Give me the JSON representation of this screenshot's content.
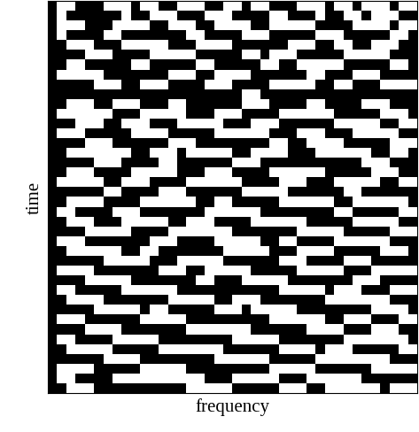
{
  "chart_data": {
    "type": "heatmap",
    "x_label": "frequency",
    "y_label": "time",
    "tick_labels": false,
    "colors": [
      "#000000",
      "#ffffff"
    ],
    "cells": [
      [
        0,
        1,
        1,
        0,
        0,
        0,
        1,
        1,
        1,
        0,
        1,
        1,
        0,
        0,
        1,
        1,
        1,
        0,
        0,
        1,
        1,
        0,
        1,
        1,
        0,
        0,
        0,
        1,
        1,
        1,
        0,
        1,
        1,
        0,
        1,
        1,
        1,
        0,
        1,
        1
      ],
      [
        0,
        1,
        0,
        0,
        0,
        0,
        0,
        0,
        1,
        0,
        0,
        1,
        1,
        1,
        0,
        0,
        0,
        1,
        1,
        1,
        0,
        0,
        0,
        0,
        1,
        1,
        0,
        0,
        0,
        1,
        0,
        0,
        1,
        1,
        0,
        1,
        1,
        1,
        0,
        0
      ],
      [
        0,
        1,
        1,
        1,
        0,
        0,
        0,
        1,
        1,
        1,
        1,
        0,
        0,
        1,
        1,
        1,
        0,
        0,
        1,
        1,
        1,
        1,
        0,
        0,
        1,
        1,
        1,
        1,
        1,
        0,
        0,
        0,
        0,
        1,
        1,
        1,
        1,
        0,
        1,
        1
      ],
      [
        0,
        1,
        0,
        0,
        0,
        0,
        1,
        1,
        0,
        0,
        0,
        0,
        0,
        0,
        0,
        1,
        1,
        0,
        0,
        0,
        0,
        1,
        1,
        1,
        0,
        0,
        0,
        0,
        0,
        1,
        1,
        1,
        0,
        0,
        0,
        0,
        0,
        1,
        1,
        0
      ],
      [
        0,
        0,
        1,
        1,
        1,
        0,
        0,
        0,
        1,
        1,
        1,
        1,
        1,
        0,
        0,
        0,
        1,
        1,
        1,
        1,
        0,
        0,
        0,
        0,
        0,
        0,
        1,
        1,
        1,
        0,
        0,
        1,
        1,
        0,
        0,
        1,
        1,
        1,
        0,
        0
      ],
      [
        0,
        0,
        0,
        0,
        1,
        1,
        1,
        0,
        0,
        0,
        0,
        1,
        1,
        1,
        1,
        1,
        0,
        0,
        0,
        0,
        0,
        1,
        1,
        0,
        1,
        1,
        1,
        0,
        0,
        0,
        0,
        0,
        1,
        1,
        1,
        1,
        1,
        0,
        0,
        0
      ],
      [
        0,
        0,
        1,
        1,
        0,
        0,
        0,
        0,
        0,
        1,
        1,
        0,
        0,
        0,
        0,
        0,
        1,
        1,
        0,
        0,
        0,
        0,
        0,
        1,
        1,
        0,
        0,
        1,
        1,
        1,
        1,
        1,
        0,
        0,
        0,
        0,
        0,
        1,
        1,
        0
      ],
      [
        0,
        1,
        1,
        1,
        1,
        1,
        0,
        0,
        0,
        0,
        0,
        0,
        0,
        1,
        1,
        1,
        0,
        0,
        1,
        1,
        1,
        1,
        0,
        0,
        0,
        0,
        0,
        0,
        1,
        1,
        0,
        0,
        0,
        1,
        1,
        1,
        0,
        0,
        0,
        0
      ],
      [
        0,
        0,
        0,
        0,
        0,
        1,
        1,
        1,
        0,
        0,
        1,
        1,
        1,
        0,
        0,
        0,
        0,
        1,
        1,
        1,
        0,
        0,
        0,
        0,
        1,
        1,
        1,
        1,
        1,
        0,
        0,
        1,
        1,
        0,
        0,
        0,
        1,
        1,
        1,
        1
      ],
      [
        0,
        0,
        0,
        0,
        0,
        0,
        0,
        0,
        0,
        0,
        0,
        0,
        0,
        0,
        0,
        0,
        0,
        0,
        0,
        0,
        0,
        1,
        1,
        0,
        0,
        0,
        0,
        0,
        0,
        0,
        0,
        0,
        0,
        0,
        0,
        0,
        0,
        0,
        0,
        0
      ],
      [
        0,
        0,
        1,
        1,
        1,
        0,
        0,
        1,
        1,
        1,
        0,
        0,
        0,
        1,
        1,
        0,
        0,
        0,
        0,
        0,
        0,
        1,
        1,
        1,
        0,
        0,
        0,
        0,
        1,
        1,
        0,
        0,
        0,
        0,
        1,
        1,
        1,
        0,
        0,
        0
      ],
      [
        0,
        1,
        1,
        1,
        1,
        1,
        1,
        0,
        0,
        0,
        1,
        1,
        1,
        1,
        1,
        0,
        0,
        0,
        1,
        1,
        1,
        0,
        0,
        0,
        0,
        1,
        1,
        1,
        1,
        1,
        1,
        0,
        0,
        0,
        0,
        0,
        1,
        1,
        1,
        0
      ],
      [
        0,
        0,
        0,
        1,
        1,
        1,
        0,
        0,
        1,
        1,
        1,
        0,
        0,
        0,
        1,
        1,
        1,
        1,
        1,
        0,
        0,
        0,
        1,
        1,
        1,
        0,
        0,
        0,
        0,
        0,
        0,
        1,
        1,
        1,
        1,
        1,
        0,
        0,
        1,
        1
      ],
      [
        0,
        1,
        1,
        1,
        0,
        0,
        0,
        0,
        0,
        1,
        1,
        1,
        1,
        0,
        0,
        0,
        0,
        0,
        1,
        1,
        1,
        1,
        1,
        1,
        0,
        0,
        0,
        1,
        1,
        1,
        0,
        0,
        0,
        1,
        1,
        1,
        1,
        1,
        0,
        0
      ],
      [
        0,
        0,
        0,
        0,
        1,
        1,
        1,
        0,
        0,
        0,
        0,
        0,
        0,
        1,
        1,
        1,
        0,
        0,
        0,
        0,
        0,
        0,
        0,
        0,
        1,
        1,
        0,
        0,
        1,
        1,
        1,
        1,
        0,
        0,
        0,
        0,
        0,
        1,
        1,
        1
      ],
      [
        0,
        0,
        1,
        1,
        1,
        1,
        1,
        1,
        1,
        0,
        0,
        1,
        1,
        1,
        0,
        1,
        1,
        1,
        1,
        1,
        0,
        0,
        1,
        1,
        1,
        1,
        0,
        0,
        0,
        1,
        1,
        1,
        1,
        1,
        1,
        0,
        0,
        1,
        1,
        0
      ],
      [
        0,
        0,
        0,
        0,
        0,
        1,
        1,
        1,
        0,
        0,
        0,
        0,
        1,
        1,
        0,
        0,
        0,
        0,
        0,
        0,
        1,
        1,
        1,
        0,
        0,
        0,
        0,
        0,
        0,
        0,
        0,
        0,
        0,
        0,
        1,
        1,
        1,
        0,
        0,
        0
      ],
      [
        0,
        0,
        1,
        1,
        1,
        0,
        0,
        0,
        0,
        1,
        1,
        1,
        1,
        1,
        0,
        0,
        0,
        1,
        1,
        1,
        0,
        0,
        0,
        0,
        1,
        1,
        1,
        1,
        1,
        1,
        0,
        0,
        0,
        0,
        0,
        1,
        1,
        1,
        0,
        0
      ],
      [
        0,
        1,
        1,
        1,
        1,
        1,
        0,
        0,
        1,
        1,
        1,
        0,
        0,
        0,
        0,
        1,
        1,
        1,
        1,
        1,
        1,
        0,
        0,
        0,
        0,
        1,
        1,
        1,
        0,
        0,
        0,
        1,
        1,
        1,
        1,
        1,
        0,
        0,
        1,
        1
      ],
      [
        0,
        0,
        0,
        0,
        0,
        0,
        1,
        1,
        0,
        0,
        0,
        0,
        1,
        1,
        1,
        0,
        0,
        0,
        0,
        0,
        0,
        1,
        1,
        1,
        1,
        1,
        0,
        0,
        0,
        0,
        0,
        0,
        1,
        1,
        0,
        0,
        0,
        0,
        0,
        0
      ],
      [
        0,
        0,
        1,
        1,
        1,
        1,
        0,
        0,
        0,
        0,
        1,
        1,
        1,
        1,
        1,
        1,
        0,
        0,
        1,
        1,
        0,
        0,
        0,
        0,
        0,
        1,
        1,
        1,
        1,
        1,
        1,
        0,
        0,
        1,
        1,
        1,
        1,
        1,
        1,
        0
      ],
      [
        0,
        1,
        1,
        0,
        0,
        0,
        0,
        1,
        1,
        1,
        0,
        0,
        0,
        0,
        0,
        0,
        0,
        1,
        1,
        1,
        1,
        1,
        1,
        0,
        0,
        0,
        0,
        0,
        0,
        0,
        0,
        1,
        1,
        0,
        0,
        0,
        0,
        0,
        1,
        1
      ],
      [
        0,
        0,
        1,
        1,
        1,
        0,
        0,
        0,
        1,
        1,
        1,
        1,
        1,
        0,
        0,
        1,
        1,
        1,
        0,
        0,
        0,
        0,
        1,
        1,
        1,
        1,
        1,
        1,
        0,
        0,
        0,
        0,
        0,
        1,
        1,
        1,
        1,
        1,
        0,
        0
      ],
      [
        0,
        0,
        0,
        0,
        1,
        1,
        1,
        1,
        1,
        0,
        0,
        0,
        0,
        1,
        1,
        1,
        1,
        1,
        1,
        1,
        0,
        0,
        0,
        0,
        0,
        0,
        0,
        1,
        1,
        1,
        1,
        1,
        0,
        0,
        0,
        0,
        0,
        1,
        1,
        1
      ],
      [
        0,
        1,
        1,
        1,
        0,
        0,
        0,
        0,
        0,
        0,
        0,
        1,
        1,
        1,
        0,
        0,
        0,
        0,
        1,
        1,
        1,
        1,
        1,
        0,
        0,
        1,
        1,
        0,
        0,
        0,
        0,
        1,
        1,
        1,
        1,
        1,
        1,
        0,
        0,
        0
      ],
      [
        0,
        0,
        1,
        1,
        1,
        1,
        1,
        1,
        0,
        0,
        1,
        1,
        0,
        0,
        0,
        0,
        0,
        0,
        0,
        1,
        1,
        1,
        1,
        1,
        0,
        0,
        0,
        1,
        1,
        1,
        1,
        0,
        0,
        0,
        0,
        0,
        1,
        1,
        1,
        0
      ],
      [
        0,
        0,
        0,
        0,
        0,
        0,
        1,
        1,
        1,
        1,
        1,
        0,
        0,
        0,
        1,
        1,
        1,
        1,
        1,
        0,
        0,
        0,
        0,
        0,
        0,
        1,
        1,
        1,
        0,
        0,
        0,
        0,
        1,
        1,
        1,
        0,
        0,
        0,
        0,
        0
      ],
      [
        0,
        1,
        1,
        1,
        1,
        0,
        0,
        0,
        0,
        0,
        0,
        0,
        1,
        1,
        1,
        0,
        0,
        1,
        1,
        1,
        1,
        1,
        0,
        0,
        0,
        0,
        0,
        1,
        1,
        1,
        1,
        1,
        0,
        0,
        0,
        1,
        1,
        1,
        1,
        1
      ],
      [
        0,
        0,
        0,
        0,
        1,
        1,
        1,
        1,
        1,
        0,
        0,
        0,
        0,
        0,
        0,
        0,
        1,
        1,
        0,
        0,
        0,
        1,
        1,
        1,
        1,
        1,
        0,
        0,
        0,
        0,
        0,
        0,
        0,
        1,
        1,
        1,
        0,
        0,
        0,
        0
      ],
      [
        0,
        1,
        1,
        0,
        0,
        0,
        0,
        0,
        1,
        1,
        1,
        1,
        1,
        1,
        0,
        0,
        0,
        0,
        0,
        0,
        0,
        0,
        0,
        0,
        0,
        1,
        1,
        1,
        1,
        1,
        0,
        1,
        1,
        1,
        0,
        0,
        0,
        1,
        1,
        1
      ],
      [
        0,
        0,
        1,
        1,
        1,
        1,
        0,
        0,
        0,
        0,
        0,
        0,
        0,
        1,
        1,
        1,
        1,
        1,
        0,
        0,
        1,
        1,
        1,
        0,
        0,
        0,
        0,
        0,
        0,
        0,
        1,
        1,
        1,
        1,
        1,
        1,
        1,
        0,
        0,
        0
      ],
      [
        0,
        0,
        0,
        0,
        0,
        1,
        1,
        1,
        1,
        1,
        0,
        1,
        1,
        0,
        0,
        0,
        0,
        0,
        1,
        1,
        1,
        0,
        1,
        1,
        1,
        1,
        1,
        0,
        0,
        0,
        0,
        0,
        0,
        0,
        0,
        1,
        1,
        1,
        1,
        0
      ],
      [
        0,
        1,
        1,
        1,
        0,
        0,
        0,
        0,
        0,
        0,
        1,
        1,
        1,
        1,
        1,
        0,
        0,
        0,
        0,
        0,
        0,
        0,
        0,
        0,
        1,
        1,
        1,
        1,
        1,
        1,
        0,
        0,
        1,
        1,
        1,
        0,
        0,
        0,
        1,
        1
      ],
      [
        0,
        0,
        0,
        0,
        1,
        1,
        1,
        1,
        0,
        0,
        0,
        0,
        0,
        0,
        0,
        1,
        1,
        1,
        1,
        1,
        1,
        1,
        0,
        0,
        0,
        0,
        0,
        0,
        1,
        1,
        1,
        1,
        0,
        0,
        0,
        1,
        1,
        1,
        0,
        0
      ],
      [
        0,
        1,
        1,
        0,
        0,
        0,
        0,
        1,
        1,
        1,
        1,
        1,
        0,
        0,
        0,
        0,
        0,
        0,
        0,
        0,
        1,
        1,
        1,
        1,
        1,
        0,
        0,
        0,
        0,
        0,
        0,
        0,
        1,
        1,
        1,
        1,
        1,
        1,
        1,
        0
      ],
      [
        0,
        0,
        1,
        1,
        1,
        1,
        1,
        0,
        0,
        0,
        0,
        0,
        1,
        1,
        1,
        1,
        1,
        1,
        1,
        0,
        0,
        0,
        0,
        0,
        0,
        1,
        1,
        1,
        1,
        0,
        1,
        1,
        1,
        0,
        0,
        0,
        0,
        0,
        1,
        1
      ],
      [
        0,
        0,
        0,
        0,
        0,
        0,
        1,
        1,
        1,
        1,
        0,
        0,
        0,
        0,
        0,
        0,
        0,
        0,
        1,
        1,
        1,
        1,
        1,
        1,
        0,
        0,
        0,
        0,
        0,
        1,
        1,
        1,
        1,
        1,
        1,
        1,
        1,
        0,
        0,
        0
      ],
      [
        0,
        1,
        1,
        1,
        1,
        0,
        0,
        0,
        0,
        0,
        1,
        1,
        1,
        1,
        1,
        0,
        0,
        0,
        0,
        0,
        0,
        0,
        0,
        0,
        1,
        1,
        1,
        1,
        1,
        0,
        0,
        0,
        0,
        0,
        0,
        1,
        1,
        1,
        1,
        1
      ],
      [
        0,
        1,
        1,
        0,
        0,
        0,
        0,
        1,
        1,
        1,
        1,
        1,
        1,
        1,
        1,
        1,
        1,
        0,
        0,
        0,
        1,
        1,
        1,
        1,
        1,
        0,
        0,
        0,
        1,
        1,
        1,
        1,
        1,
        1,
        0,
        0,
        0,
        0,
        0,
        0
      ],
      [
        0,
        0,
        1,
        1,
        1,
        0,
        0,
        0,
        0,
        0,
        0,
        0,
        0,
        0,
        0,
        1,
        1,
        1,
        1,
        1,
        0,
        0,
        0,
        0,
        0,
        1,
        1,
        1,
        0,
        0,
        1,
        1,
        1,
        1,
        1,
        1,
        0,
        1,
        1,
        1
      ]
    ]
  }
}
